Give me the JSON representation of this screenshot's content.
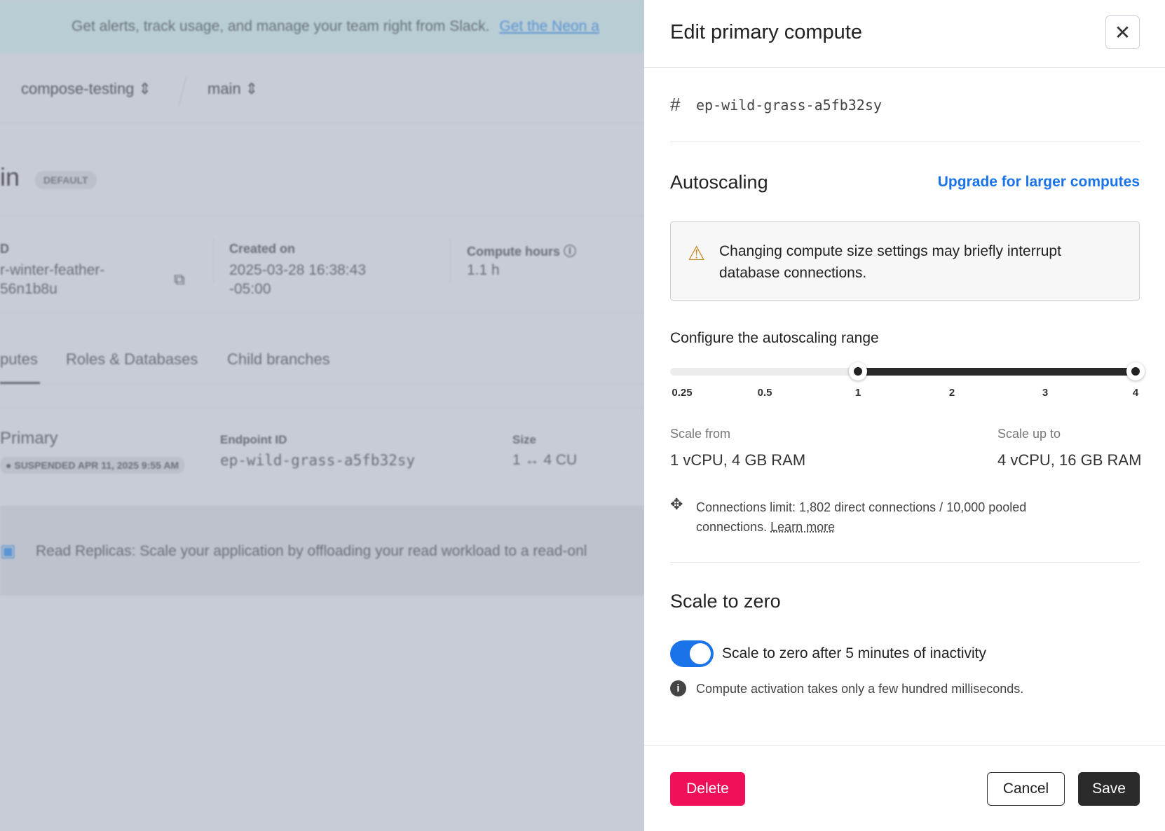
{
  "background": {
    "banner_text": "Get alerts, track usage, and manage your team right from Slack.",
    "banner_link": "Get the Neon a",
    "breadcrumbs": [
      "compose-testing",
      "main"
    ],
    "branch_title": "in",
    "default_badge": "DEFAULT",
    "id_label": "D",
    "id_value_1": "r-winter-feather-",
    "id_value_2": "56n1b8u",
    "created_label": "Created on",
    "created_value_1": "2025-03-28 16:38:43",
    "created_value_2": "-05:00",
    "compute_hours_label": "Compute hours",
    "compute_hours_value": "1.1 h",
    "tabs": [
      "putes",
      "Roles & Databases",
      "Child branches"
    ],
    "compute_name": "Primary",
    "status_badge": "SUSPENDED APR 11, 2025 9:55 AM",
    "endpoint_label": "Endpoint ID",
    "endpoint_value": "ep-wild-grass-a5fb32sy",
    "size_label": "Size",
    "size_value": "1 ↔ 4 CU",
    "replicas_text": "Read Replicas: Scale your application by offloading your read workload to a read-onl"
  },
  "panel": {
    "title": "Edit primary compute",
    "endpoint_id": "ep-wild-grass-a5fb32sy",
    "autoscaling_heading": "Autoscaling",
    "upgrade_link": "Upgrade for larger computes",
    "warning_text": "Changing compute size settings may briefly interrupt database connections.",
    "range_label": "Configure the autoscaling range",
    "slider": {
      "ticks": [
        "0.25",
        "0.5",
        "1",
        "2",
        "3",
        "4"
      ],
      "min_value": 1,
      "max_value": 4
    },
    "scale_from_label": "Scale from",
    "scale_from_value": "1 vCPU, 4 GB RAM",
    "scale_up_label": "Scale up to",
    "scale_up_value": "4 vCPU, 16 GB RAM",
    "connections_text": "Connections limit: 1,802 direct connections / 10,000 pooled connections.",
    "learn_more": "Learn more",
    "scale_zero_heading": "Scale to zero",
    "scale_zero_toggle_label": "Scale to zero after 5 minutes of inactivity",
    "scale_zero_enabled": true,
    "info_text": "Compute activation takes only a few hundred milliseconds.",
    "delete_label": "Delete",
    "cancel_label": "Cancel",
    "save_label": "Save"
  },
  "colors": {
    "accent": "#1a73e8",
    "delete": "#f0105a",
    "save": "#2b2b2b"
  }
}
